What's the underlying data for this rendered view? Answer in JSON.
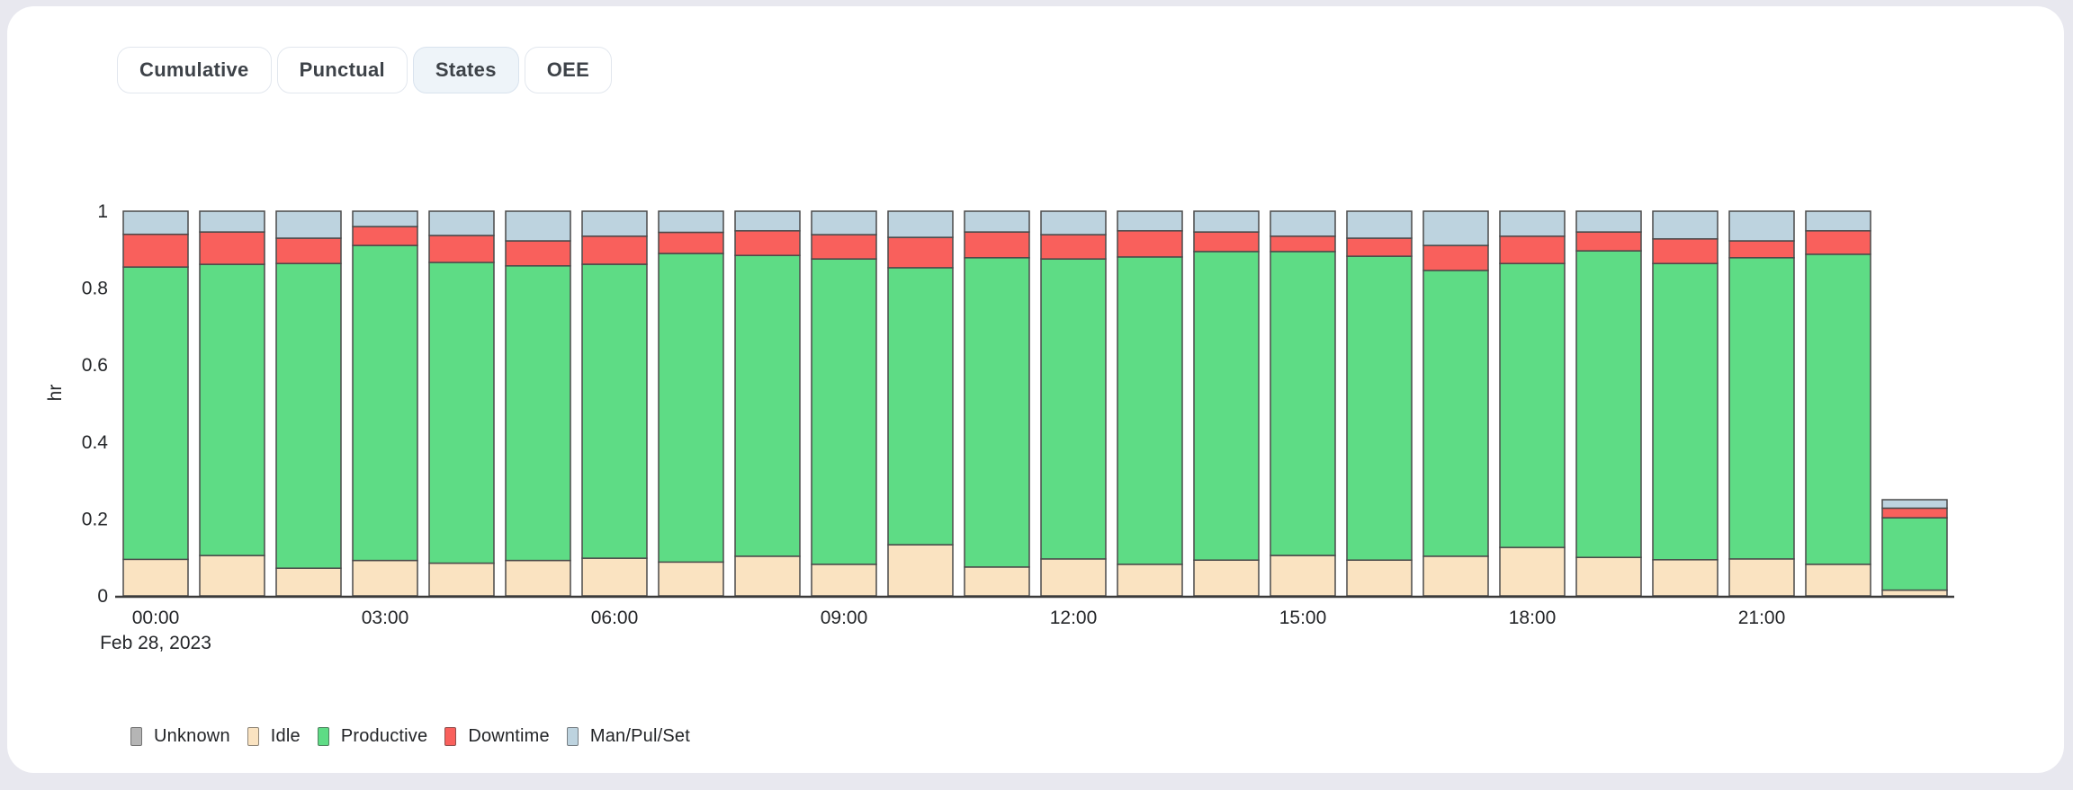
{
  "tabs": {
    "items": [
      {
        "label": "Cumulative",
        "active": false
      },
      {
        "label": "Punctual",
        "active": false
      },
      {
        "label": "States",
        "active": true
      },
      {
        "label": "OEE",
        "active": false
      }
    ]
  },
  "chart_data": {
    "type": "bar",
    "stacked": true,
    "title": "",
    "ylabel": "hr",
    "xlabel": "",
    "ylim": [
      0,
      1
    ],
    "yticks": [
      "0",
      "0.2",
      "0.4",
      "0.6",
      "0.8",
      "1"
    ],
    "ytick_values": [
      0,
      0.2,
      0.4,
      0.6,
      0.8,
      1
    ],
    "xtick_indices": [
      0,
      3,
      6,
      9,
      12,
      15,
      18,
      21
    ],
    "date_label": "Feb 28, 2023",
    "grid": false,
    "legend_position": "bottom",
    "categories": [
      "00:00",
      "01:00",
      "02:00",
      "03:00",
      "04:00",
      "05:00",
      "06:00",
      "07:00",
      "08:00",
      "09:00",
      "10:00",
      "11:00",
      "12:00",
      "13:00",
      "14:00",
      "15:00",
      "16:00",
      "17:00",
      "18:00",
      "19:00",
      "20:00",
      "21:00",
      "22:00",
      "23:00"
    ],
    "series": [
      {
        "name": "Unknown",
        "color": "#b5b5b5",
        "values": [
          0,
          0,
          0,
          0,
          0,
          0,
          0,
          0,
          0,
          0,
          0,
          0,
          0,
          0,
          0,
          0,
          0,
          0,
          0,
          0,
          0,
          0,
          0,
          0
        ]
      },
      {
        "name": "Idle",
        "color": "#fae3c1",
        "values": [
          0.095,
          0.105,
          0.072,
          0.092,
          0.085,
          0.092,
          0.098,
          0.088,
          0.103,
          0.082,
          0.133,
          0.075,
          0.096,
          0.082,
          0.093,
          0.105,
          0.093,
          0.103,
          0.126,
          0.1,
          0.094,
          0.096,
          0.082,
          0.015
        ]
      },
      {
        "name": "Productive",
        "color": "#5edc85",
        "values": [
          0.76,
          0.757,
          0.792,
          0.819,
          0.782,
          0.766,
          0.764,
          0.802,
          0.782,
          0.794,
          0.72,
          0.804,
          0.78,
          0.799,
          0.802,
          0.79,
          0.79,
          0.743,
          0.738,
          0.797,
          0.77,
          0.783,
          0.806,
          0.188
        ]
      },
      {
        "name": "Downtime",
        "color": "#f9605c",
        "values": [
          0.085,
          0.084,
          0.066,
          0.049,
          0.07,
          0.065,
          0.073,
          0.055,
          0.064,
          0.063,
          0.079,
          0.067,
          0.063,
          0.068,
          0.051,
          0.04,
          0.047,
          0.065,
          0.071,
          0.049,
          0.064,
          0.044,
          0.061,
          0.025
        ]
      },
      {
        "name": "Man/Pul/Set",
        "color": "#bdd3df",
        "values": [
          0.06,
          0.054,
          0.07,
          0.04,
          0.063,
          0.077,
          0.065,
          0.055,
          0.051,
          0.061,
          0.068,
          0.054,
          0.061,
          0.051,
          0.054,
          0.065,
          0.07,
          0.089,
          0.065,
          0.054,
          0.072,
          0.077,
          0.051,
          0.022
        ]
      }
    ]
  }
}
